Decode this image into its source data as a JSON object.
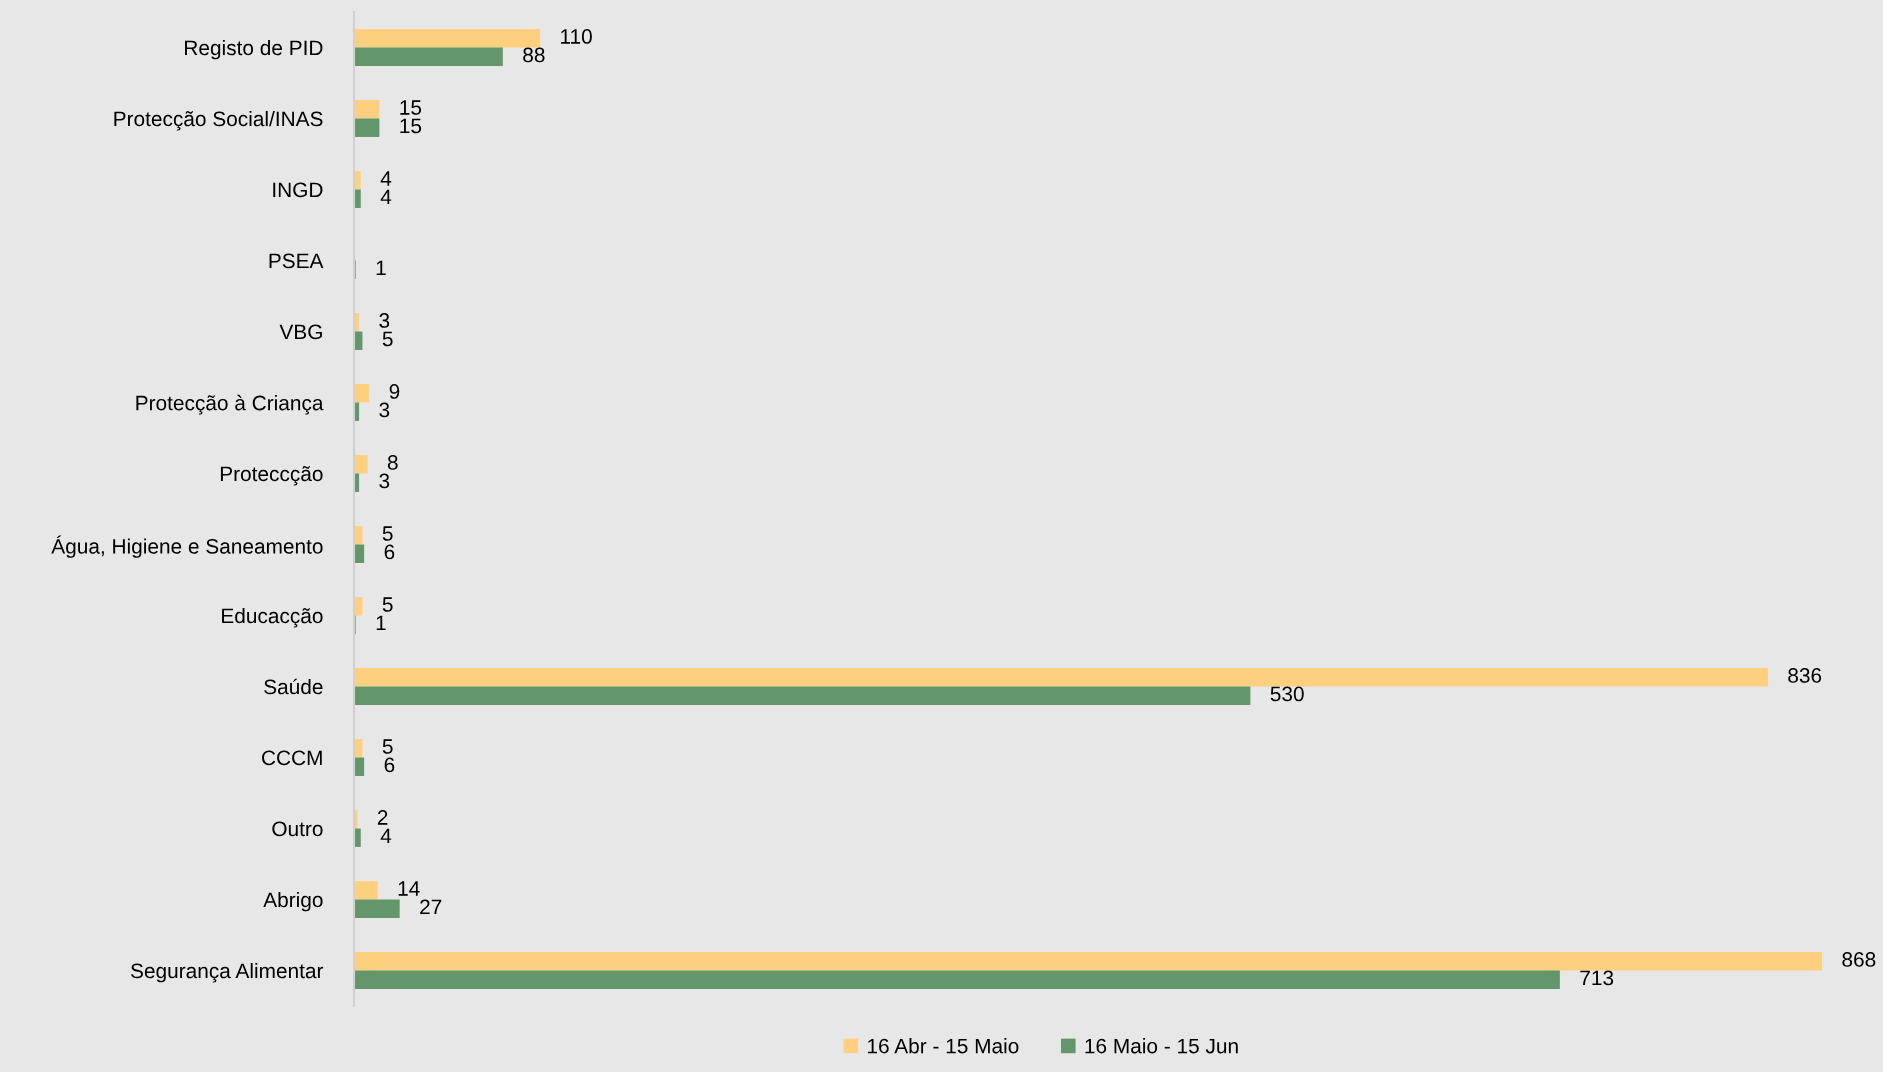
{
  "chart_data": {
    "type": "bar",
    "orientation": "horizontal",
    "categories": [
      "Registo de PID",
      "Protecção Social/INAS",
      "INGD",
      "PSEA",
      "VBG",
      "Protecção à Criança",
      "Proteccção",
      "Água, Higiene e Saneamento",
      "Educacção",
      "Saúde",
      "CCCM",
      "Outro",
      "Abrigo",
      "Segurança Alimentar"
    ],
    "series": [
      {
        "name": "16 Abr - 15 Maio",
        "color": "#fdd07f",
        "values": [
          110,
          15,
          4,
          null,
          3,
          9,
          8,
          5,
          5,
          836,
          5,
          2,
          14,
          868
        ]
      },
      {
        "name": "16 Maio - 15 Jun",
        "color": "#63966b",
        "values": [
          88,
          15,
          4,
          1,
          5,
          3,
          3,
          6,
          1,
          530,
          6,
          4,
          27,
          713
        ]
      }
    ],
    "data_labels": true,
    "legend": "bottom",
    "grid": false,
    "tick_labels": "y"
  }
}
